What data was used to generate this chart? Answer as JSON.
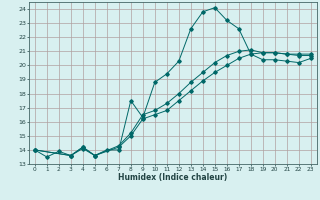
{
  "title": "",
  "xlabel": "Humidex (Indice chaleur)",
  "ylabel": "",
  "background_color": "#d8f0f0",
  "plot_bg_color": "#d8f0f0",
  "grid_color": "#b0a0a0",
  "line_color": "#006868",
  "xlim": [
    -0.5,
    23.5
  ],
  "ylim": [
    13,
    24.5
  ],
  "yticks": [
    13,
    14,
    15,
    16,
    17,
    18,
    19,
    20,
    21,
    22,
    23,
    24
  ],
  "xticks": [
    0,
    1,
    2,
    3,
    4,
    5,
    6,
    7,
    8,
    9,
    10,
    11,
    12,
    13,
    14,
    15,
    16,
    17,
    18,
    19,
    20,
    21,
    22,
    23
  ],
  "line1_x": [
    0,
    1,
    2,
    3,
    4,
    5,
    6,
    7,
    8,
    9,
    10,
    11,
    12,
    13,
    14,
    15,
    16,
    17,
    18,
    19,
    20,
    21,
    22,
    23
  ],
  "line1_y": [
    14.0,
    13.5,
    13.9,
    13.6,
    14.1,
    13.6,
    14.0,
    14.0,
    17.5,
    16.3,
    18.8,
    19.4,
    20.3,
    22.6,
    23.8,
    24.1,
    23.2,
    22.6,
    20.8,
    20.4,
    20.4,
    20.3,
    20.2,
    20.5
  ],
  "line2_x": [
    0,
    3,
    4,
    5,
    7,
    8,
    9,
    10,
    11,
    12,
    13,
    14,
    15,
    16,
    17,
    18,
    19,
    20,
    21,
    22,
    23
  ],
  "line2_y": [
    14.0,
    13.6,
    14.2,
    13.6,
    14.2,
    15.0,
    16.2,
    16.5,
    16.8,
    17.5,
    18.2,
    18.9,
    19.5,
    20.0,
    20.5,
    20.8,
    20.9,
    20.9,
    20.8,
    20.8,
    20.8
  ],
  "line3_x": [
    0,
    3,
    4,
    5,
    7,
    8,
    9,
    10,
    11,
    12,
    13,
    14,
    15,
    16,
    17,
    18,
    19,
    20,
    21,
    22,
    23
  ],
  "line3_y": [
    14.0,
    13.6,
    14.2,
    13.6,
    14.3,
    15.2,
    16.5,
    16.8,
    17.3,
    18.0,
    18.8,
    19.5,
    20.2,
    20.7,
    21.0,
    21.1,
    20.9,
    20.9,
    20.8,
    20.7,
    20.7
  ]
}
